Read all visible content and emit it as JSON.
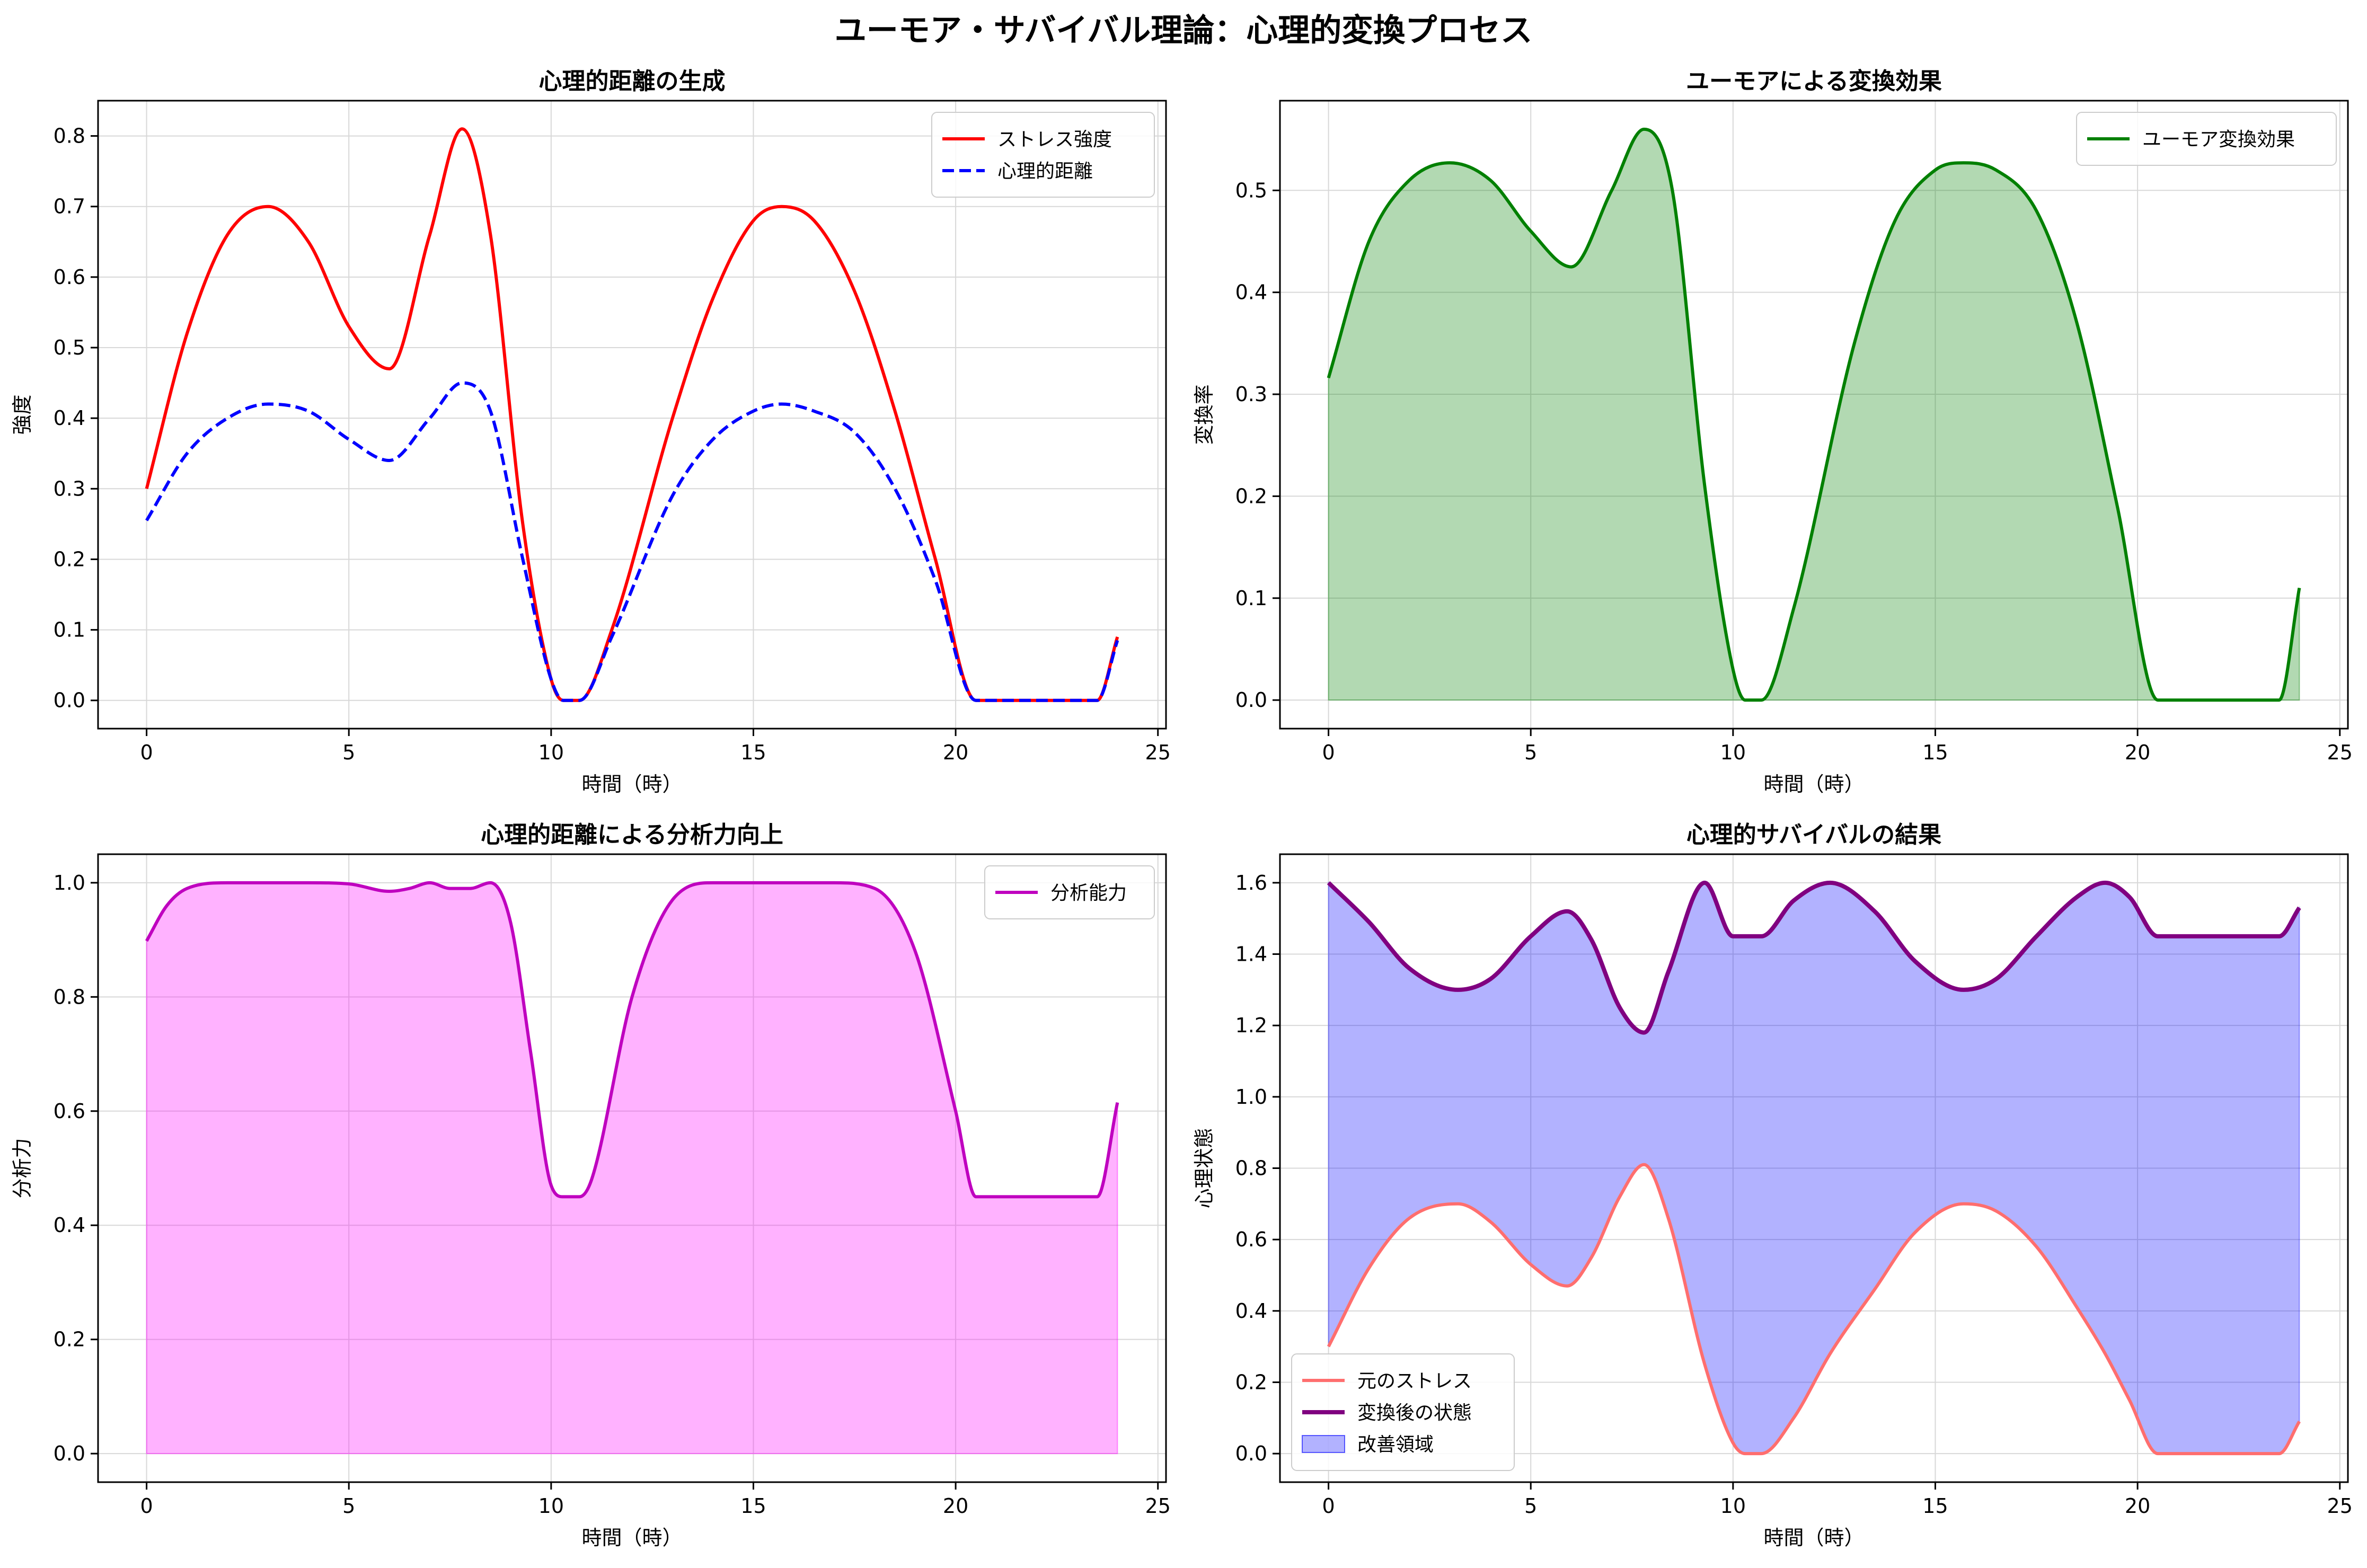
{
  "figure": {
    "suptitle": "ユーモア・サバイバル理論：心理的変換プロセス"
  },
  "panels": [
    {
      "id": "p1",
      "title": "心理的距離の生成",
      "xlabel": "時間（時）",
      "ylabel": "強度",
      "xlim": [
        -1.2,
        25.2
      ],
      "ylim": [
        -0.04,
        0.85
      ],
      "xticks": [
        "0",
        "5",
        "10",
        "15",
        "20",
        "25"
      ],
      "yticks": [
        "0.0",
        "0.1",
        "0.2",
        "0.3",
        "0.4",
        "0.5",
        "0.6",
        "0.7",
        "0.8"
      ],
      "legend_position": "upper-right"
    },
    {
      "id": "p2",
      "title": "ユーモアによる変換効果",
      "xlabel": "時間（時）",
      "ylabel": "変換率",
      "xlim": [
        -1.2,
        25.2
      ],
      "ylim": [
        -0.028,
        0.588
      ],
      "xticks": [
        "0",
        "5",
        "10",
        "15",
        "20",
        "25"
      ],
      "yticks": [
        "0.0",
        "0.1",
        "0.2",
        "0.3",
        "0.4",
        "0.5"
      ],
      "legend_position": "upper-right"
    },
    {
      "id": "p3",
      "title": "心理的距離による分析力向上",
      "xlabel": "時間（時）",
      "ylabel": "分析力",
      "xlim": [
        -1.2,
        25.2
      ],
      "ylim": [
        -0.05,
        1.05
      ],
      "xticks": [
        "0",
        "5",
        "10",
        "15",
        "20",
        "25"
      ],
      "yticks": [
        "0.0",
        "0.2",
        "0.4",
        "0.6",
        "0.8",
        "1.0"
      ],
      "legend_position": "upper-right"
    },
    {
      "id": "p4",
      "title": "心理的サバイバルの結果",
      "xlabel": "時間（時）",
      "ylabel": "心理状態",
      "xlim": [
        -1.2,
        25.2
      ],
      "ylim": [
        -0.08,
        1.68
      ],
      "xticks": [
        "0",
        "5",
        "10",
        "15",
        "20",
        "25"
      ],
      "yticks": [
        "0.0",
        "0.2",
        "0.4",
        "0.6",
        "0.8",
        "1.0",
        "1.2",
        "1.4",
        "1.6"
      ],
      "legend_position": "lower-left"
    }
  ],
  "chart_data": [
    {
      "type": "line",
      "panel": "p1",
      "x": [
        0,
        1,
        2,
        3,
        4,
        5,
        6,
        7,
        7.8,
        8.5,
        9.3,
        10,
        10.3,
        10.7,
        11.5,
        13,
        14,
        15,
        15.7,
        16.5,
        17.5,
        18.5,
        19.5,
        20.5,
        21.5,
        22.5,
        23.5,
        24
      ],
      "series": [
        {
          "name": "ストレス強度",
          "color": "#ff0000",
          "style": "solid",
          "values": [
            0.3,
            0.52,
            0.66,
            0.7,
            0.65,
            0.53,
            0.47,
            0.66,
            0.81,
            0.66,
            0.25,
            0.03,
            0.0,
            0.0,
            0.1,
            0.4,
            0.57,
            0.68,
            0.7,
            0.68,
            0.58,
            0.41,
            0.2,
            0.0,
            0.0,
            0.0,
            0.0,
            0.09
          ]
        },
        {
          "name": "心理的距離",
          "color": "#0000ff",
          "style": "dashed",
          "values": [
            0.255,
            0.35,
            0.4,
            0.42,
            0.41,
            0.37,
            0.34,
            0.4,
            0.45,
            0.41,
            0.2,
            0.03,
            0.0,
            0.0,
            0.09,
            0.29,
            0.37,
            0.41,
            0.42,
            0.41,
            0.38,
            0.3,
            0.17,
            0.0,
            0.0,
            0.0,
            0.0,
            0.085
          ]
        }
      ]
    },
    {
      "type": "area",
      "panel": "p2",
      "x": [
        0,
        1,
        2,
        3,
        4,
        5,
        6,
        7,
        7.8,
        8.5,
        9.3,
        10,
        10.3,
        10.7,
        11.5,
        13,
        14,
        15,
        15.7,
        16.5,
        17.5,
        18.5,
        19.5,
        20.5,
        21.5,
        22.5,
        23.5,
        24
      ],
      "series": [
        {
          "name": "ユーモア変換効果",
          "color": "#008000",
          "fill": "#008000",
          "fill_opacity": 0.3,
          "values": [
            0.316,
            0.45,
            0.51,
            0.527,
            0.51,
            0.46,
            0.425,
            0.5,
            0.56,
            0.5,
            0.21,
            0.03,
            0.0,
            0.0,
            0.09,
            0.35,
            0.47,
            0.52,
            0.527,
            0.52,
            0.48,
            0.37,
            0.19,
            0.0,
            0.0,
            0.0,
            0.0,
            0.11
          ]
        }
      ]
    },
    {
      "type": "area",
      "panel": "p3",
      "x": [
        0,
        0.5,
        1,
        2,
        3,
        4,
        5,
        6,
        6.5,
        7,
        7.5,
        8,
        8.5,
        9,
        9.5,
        10,
        10.3,
        10.7,
        11,
        12,
        13,
        14,
        15,
        16,
        17,
        18,
        19,
        20,
        20.5,
        21.5,
        22.5,
        23.5,
        24
      ],
      "series": [
        {
          "name": "分析能力",
          "color": "#bf00bf",
          "fill": "#ff00ff",
          "fill_opacity": 0.3,
          "values": [
            0.898,
            0.96,
            0.99,
            1.0,
            1.0,
            1.0,
            0.998,
            0.985,
            0.99,
            1.0,
            0.99,
            0.99,
            1.0,
            0.93,
            0.7,
            0.47,
            0.45,
            0.45,
            0.48,
            0.8,
            0.97,
            1.0,
            1.0,
            1.0,
            1.0,
            0.99,
            0.88,
            0.6,
            0.45,
            0.45,
            0.45,
            0.45,
            0.615
          ]
        }
      ]
    },
    {
      "type": "line",
      "panel": "p4",
      "x": [
        0,
        1,
        2,
        3.2,
        4,
        5,
        5.9,
        6.5,
        7.2,
        7.8,
        8.4,
        9.3,
        10,
        10.3,
        10.7,
        11.5,
        12.4,
        13.5,
        14.5,
        15.7,
        16.5,
        17.5,
        18.5,
        19.2,
        19.8,
        20.5,
        21.5,
        22.5,
        23.5,
        24
      ],
      "series": [
        {
          "name": "元のストレス",
          "color": "#ff6e6e",
          "style": "solid",
          "values": [
            0.3,
            0.52,
            0.66,
            0.7,
            0.65,
            0.53,
            0.47,
            0.55,
            0.72,
            0.81,
            0.66,
            0.25,
            0.03,
            0.0,
            0.0,
            0.1,
            0.28,
            0.46,
            0.62,
            0.7,
            0.68,
            0.58,
            0.41,
            0.28,
            0.15,
            0.0,
            0.0,
            0.0,
            0.0,
            0.09
          ]
        },
        {
          "name": "変換後の状態",
          "color": "#800080",
          "style": "solid",
          "width": 8,
          "values": [
            1.6,
            1.49,
            1.36,
            1.3,
            1.33,
            1.45,
            1.52,
            1.44,
            1.25,
            1.18,
            1.35,
            1.6,
            1.45,
            1.45,
            1.45,
            1.55,
            1.6,
            1.52,
            1.38,
            1.3,
            1.33,
            1.45,
            1.56,
            1.6,
            1.56,
            1.45,
            1.45,
            1.45,
            1.45,
            1.53
          ]
        },
        {
          "name": "改善領域",
          "color": "#0000ff",
          "fill": "#0000ff",
          "fill_opacity": 0.3,
          "kind": "fill-between"
        }
      ]
    }
  ]
}
